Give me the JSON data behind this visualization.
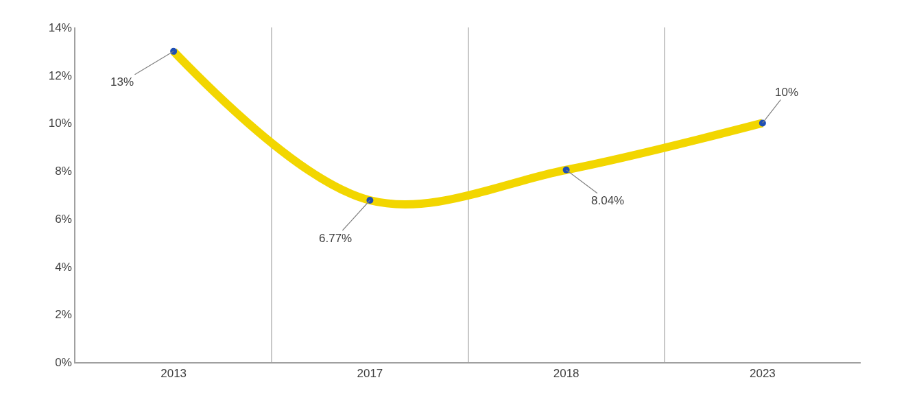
{
  "chart_data": {
    "type": "line",
    "categories": [
      "2013",
      "2017",
      "2018",
      "2023"
    ],
    "series": [
      {
        "color": "#f2d600",
        "colors": [
          "#1f4fb4",
          "#1f4fb4",
          "#1f4fb4",
          "#1f4fb4"
        ],
        "values": [
          13,
          6.77,
          8.04,
          10
        ],
        "value_labels": [
          "13%",
          "6.77%",
          "8.04%",
          "10%"
        ]
      }
    ],
    "ylim": [
      0,
      14
    ],
    "yticks": [
      {
        "value": 0,
        "label": "0%"
      },
      {
        "value": 2,
        "label": "2%"
      },
      {
        "value": 4,
        "label": "4%"
      },
      {
        "value": 6,
        "label": "6%"
      },
      {
        "value": 8,
        "label": "8%"
      },
      {
        "value": 10,
        "label": "10%"
      },
      {
        "value": 12,
        "label": "12%"
      },
      {
        "value": 14,
        "label": "14%"
      }
    ],
    "grid": "x",
    "marker": "circle",
    "line_style": "solid"
  }
}
